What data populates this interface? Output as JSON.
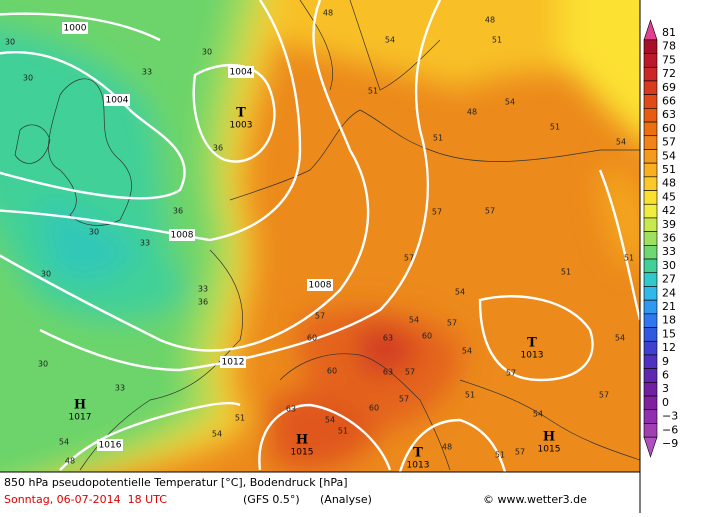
{
  "legend": {
    "items": [
      {
        "label": "81",
        "color": "#e0408f"
      },
      {
        "label": "78",
        "color": "#a8102a"
      },
      {
        "label": "75",
        "color": "#bc1a2a"
      },
      {
        "label": "72",
        "color": "#cc2628"
      },
      {
        "label": "69",
        "color": "#d83a20"
      },
      {
        "label": "66",
        "color": "#e04a18"
      },
      {
        "label": "63",
        "color": "#e85c12"
      },
      {
        "label": "60",
        "color": "#ec7010"
      },
      {
        "label": "57",
        "color": "#f08418"
      },
      {
        "label": "54",
        "color": "#f49a1c"
      },
      {
        "label": "51",
        "color": "#f8b020"
      },
      {
        "label": "48",
        "color": "#fac828"
      },
      {
        "label": "45",
        "color": "#fce030"
      },
      {
        "label": "42",
        "color": "#f0ec40"
      },
      {
        "label": "39",
        "color": "#c8e850"
      },
      {
        "label": "36",
        "color": "#a0e060"
      },
      {
        "label": "33",
        "color": "#70d870"
      },
      {
        "label": "30",
        "color": "#40d098"
      },
      {
        "label": "27",
        "color": "#30c8c8"
      },
      {
        "label": "24",
        "color": "#30b8e8"
      },
      {
        "label": "21",
        "color": "#3098f0"
      },
      {
        "label": "18",
        "color": "#3078f0"
      },
      {
        "label": "15",
        "color": "#3058e0"
      },
      {
        "label": "12",
        "color": "#4040d0"
      },
      {
        "label": "9",
        "color": "#5030c0"
      },
      {
        "label": "6",
        "color": "#6028b0"
      },
      {
        "label": "3",
        "color": "#7020a0"
      },
      {
        "label": "0",
        "color": "#8020a0"
      },
      {
        "label": "−3",
        "color": "#9030b0"
      },
      {
        "label": "−6",
        "color": "#a040b0"
      },
      {
        "label": "−9",
        "color": "#b050c0"
      }
    ]
  },
  "pressure_systems": [
    {
      "letter": "T",
      "value": "1003"
    },
    {
      "letter": "H",
      "value": "1017"
    },
    {
      "letter": "H",
      "value": "1015"
    },
    {
      "letter": "T",
      "value": "1013"
    },
    {
      "letter": "T",
      "value": "1013"
    },
    {
      "letter": "H",
      "value": "1015"
    }
  ],
  "isobar_labels": [
    "1000",
    "1004",
    "1004",
    "1008",
    "1008",
    "1012",
    "1016"
  ],
  "isotherm_labels": [
    "30",
    "30",
    "33",
    "30",
    "36",
    "36",
    "33",
    "30",
    "30",
    "33",
    "36",
    "30",
    "33",
    "48",
    "54",
    "51",
    "48",
    "51",
    "54",
    "48",
    "51",
    "54",
    "51",
    "57",
    "51",
    "51",
    "57",
    "57",
    "54",
    "57",
    "60",
    "54",
    "57",
    "60",
    "63",
    "60",
    "63",
    "57",
    "54",
    "51",
    "54",
    "57",
    "51",
    "54",
    "51",
    "57",
    "48",
    "51",
    "57",
    "54",
    "54",
    "48",
    "63",
    "54",
    "60",
    "57"
  ],
  "footer": {
    "title": "850 hPa pseudopotentielle Temperatur [°C], Bodendruck [hPa]",
    "date": "Sonntag, 06-07-2014  18 UTC",
    "model": "(GFS 0.5°)",
    "analysis": "(Analyse)",
    "copyright": "© www.wetter3.de"
  }
}
